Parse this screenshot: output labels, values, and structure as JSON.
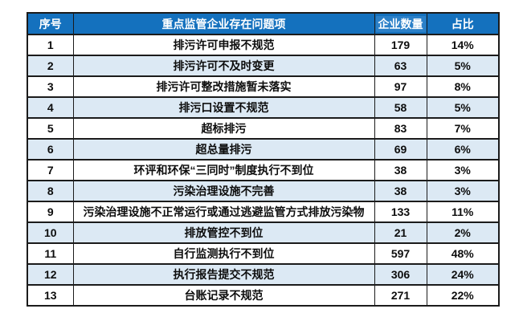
{
  "colors": {
    "header_bg": "#1471be",
    "header_highlight_bg": "#2b80c8",
    "header_text": "#ffffff",
    "alt_row_bg": "#dce9f4",
    "grid_border": "#1b1b1b",
    "cell_text": "#0d0d0d"
  },
  "chart_data": {
    "type": "table",
    "title": "",
    "columns": [
      "序号",
      "重点监管企业存在问题项",
      "企业数量",
      "占比"
    ],
    "rows": [
      [
        1,
        "排污许可申报不规范",
        179,
        "14%"
      ],
      [
        2,
        "排污许可不及时变更",
        63,
        "5%"
      ],
      [
        3,
        "排污许可整改措施暂未落实",
        97,
        "8%"
      ],
      [
        4,
        "排污口设置不规范",
        58,
        "5%"
      ],
      [
        5,
        "超标排污",
        83,
        "7%"
      ],
      [
        6,
        "超总量排污",
        69,
        "6%"
      ],
      [
        7,
        "环评和环保“三同时”制度执行不到位",
        38,
        "3%"
      ],
      [
        8,
        "污染治理设施不完善",
        38,
        "3%"
      ],
      [
        9,
        "污染治理设施不正常运行或通过逃避监管方式排放污染物",
        133,
        "11%"
      ],
      [
        10,
        "排放管控不到位",
        21,
        "2%"
      ],
      [
        11,
        "自行监测执行不到位",
        597,
        "48%"
      ],
      [
        12,
        "执行报告提交不规范",
        306,
        "24%"
      ],
      [
        13,
        "台账记录不规范",
        271,
        "22%"
      ]
    ],
    "legend": "none",
    "grid": "on"
  }
}
